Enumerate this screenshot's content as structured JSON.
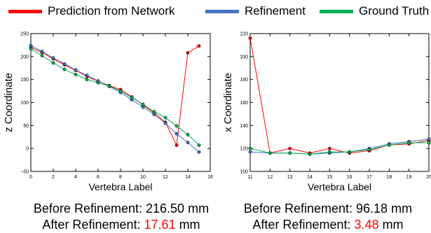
{
  "legend": [
    {
      "label": "Prediction from Network",
      "color": "#ff0000"
    },
    {
      "label": "Refinement",
      "color": "#4472c4"
    },
    {
      "label": "Ground Truth",
      "color": "#00b050"
    }
  ],
  "chart_data": [
    {
      "type": "line",
      "xlabel": "Vertebra Label",
      "ylabel": "z Coordinate",
      "xlim": [
        0,
        16
      ],
      "ylim": [
        -50,
        250
      ],
      "xticks": [
        "0",
        "2",
        "4",
        "6",
        "8",
        "10",
        "12",
        "14",
        "16"
      ],
      "yticks": [
        "−50",
        "0",
        "50",
        "100",
        "150",
        "200",
        "250"
      ],
      "x": [
        0,
        1,
        2,
        3,
        4,
        5,
        6,
        7,
        8,
        9,
        10,
        11,
        12,
        13,
        14,
        15
      ],
      "series": [
        {
          "name": "Prediction from Network",
          "color": "#ff0000",
          "values": [
            220,
            209,
            195,
            182,
            170,
            157,
            146,
            137,
            128,
            112,
            95,
            77,
            57,
            7,
            208,
            223
          ]
        },
        {
          "name": "Refinement",
          "color": "#4472c4",
          "values": [
            224,
            211,
            197,
            184,
            171,
            159,
            147,
            135,
            122,
            106,
            90,
            74,
            55,
            32,
            13,
            -8
          ]
        },
        {
          "name": "Ground Truth",
          "color": "#00b050",
          "values": [
            217,
            202,
            186,
            172,
            161,
            150,
            143,
            136,
            125,
            111,
            96,
            80,
            67,
            49,
            30,
            7
          ]
        }
      ],
      "caption": {
        "before_label": "Before Refinement: ",
        "before_value": "216.50",
        "after_label": "After Refinement: ",
        "after_value": "17.61",
        "unit": "mm"
      }
    },
    {
      "type": "line",
      "xlabel": "Vertebra Label",
      "ylabel": "x Coordinate",
      "xlim": [
        11,
        20
      ],
      "ylim": [
        100,
        220
      ],
      "xticks": [
        "11",
        "12",
        "13",
        "14",
        "15",
        "16",
        "17",
        "18",
        "19",
        "20"
      ],
      "yticks": [
        "100",
        "120",
        "140",
        "160",
        "180",
        "200",
        "220"
      ],
      "x": [
        11,
        12,
        13,
        14,
        15,
        16,
        17,
        18,
        19,
        20
      ],
      "series": [
        {
          "name": "Prediction from Network",
          "color": "#ff0000",
          "values": [
            216,
            116,
            120,
            116,
            120,
            116,
            118,
            123,
            124,
            127
          ]
        },
        {
          "name": "Refinement",
          "color": "#4472c4",
          "values": [
            117,
            116,
            116,
            115,
            116,
            117,
            120,
            124,
            126,
            128
          ]
        },
        {
          "name": "Ground Truth",
          "color": "#00b050",
          "values": [
            120,
            116,
            116,
            115,
            117,
            117,
            119,
            123,
            125,
            125
          ]
        }
      ],
      "caption": {
        "before_label": "Before Refinement: ",
        "before_value": "96.18",
        "after_label": "After Refinement: ",
        "after_value": "3.48",
        "unit": "mm"
      }
    }
  ]
}
